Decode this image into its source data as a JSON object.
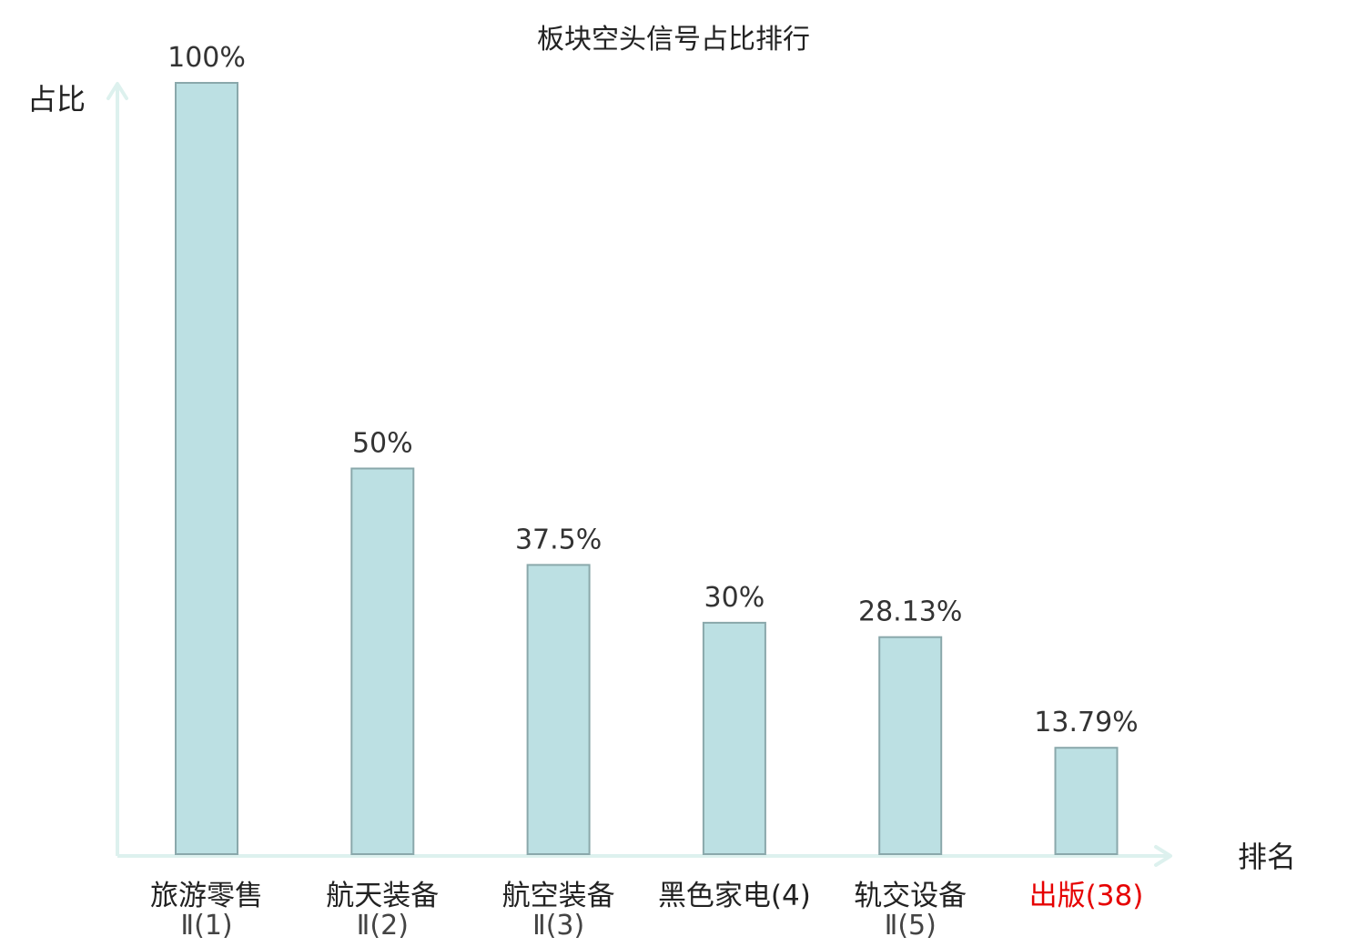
{
  "chart_data": {
    "type": "bar",
    "title": "板块空头信号占比排行",
    "ylabel": "占比",
    "xlabel": "排名",
    "ylim": [
      0,
      100
    ],
    "grid": false,
    "categories": [
      {
        "line1": "旅游零售",
        "line2": "Ⅱ(1)",
        "highlight": false
      },
      {
        "line1": "航天装备",
        "line2": "Ⅱ(2)",
        "highlight": false
      },
      {
        "line1": "航空装备",
        "line2": "Ⅱ(3)",
        "highlight": false
      },
      {
        "line1": "黑色家电(4)",
        "line2": "",
        "highlight": false
      },
      {
        "line1": "轨交设备",
        "line2": "Ⅱ(5)",
        "highlight": false
      },
      {
        "line1": "出版(38)",
        "line2": "",
        "highlight": true
      }
    ],
    "values": [
      100,
      50,
      37.5,
      30,
      28.13,
      13.79
    ],
    "value_labels": [
      "100%",
      "50%",
      "37.5%",
      "30%",
      "28.13%",
      "13.79%"
    ]
  },
  "colors": {
    "bar_fill": "#bce0e3",
    "bar_stroke": "#8aa8ab",
    "axis": "#ddf1ee",
    "text": "#333333",
    "highlight": "#e60000"
  }
}
